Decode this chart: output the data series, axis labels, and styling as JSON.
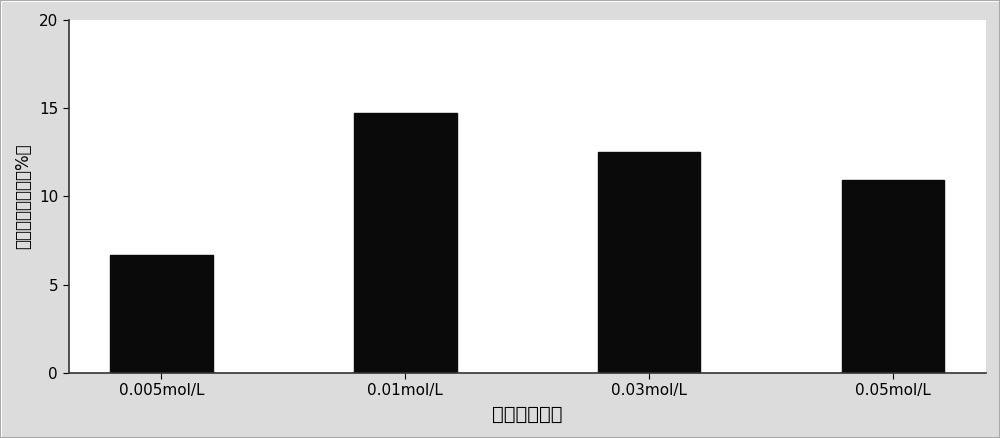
{
  "categories": [
    "0.005mol/L",
    "0.01mol/L",
    "0.03mol/L",
    "0.05mol/L"
  ],
  "values": [
    6.7,
    14.7,
    12.5,
    10.9
  ],
  "bar_color": "#0a0a0a",
  "bar_width": 0.42,
  "xlabel": "氯化铁的浓度",
  "ylabel": "去除率的提高値（%）",
  "ylim": [
    0,
    20
  ],
  "yticks": [
    0,
    5,
    10,
    15,
    20
  ],
  "xlabel_fontsize": 14,
  "ylabel_fontsize": 12,
  "tick_fontsize": 11,
  "figure_bg": "#dcdcdc",
  "axes_bg": "#ffffff",
  "border_color": "#888888"
}
